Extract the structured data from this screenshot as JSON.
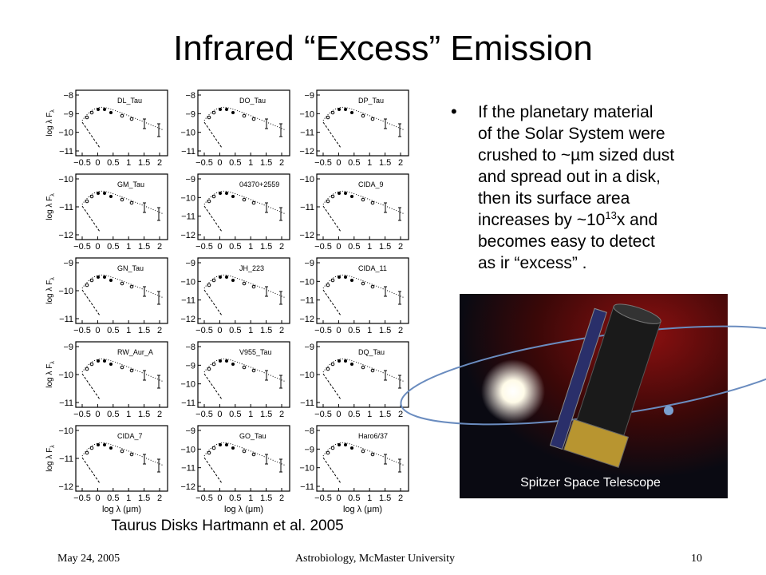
{
  "title": "Infrared “Excess” Emission",
  "figure": {
    "xticks": [
      "−0.5",
      "0",
      "0.5",
      "1",
      "1.5",
      "2"
    ],
    "ylabel": "log λ F",
    "ylabel_sub": "λ",
    "xlabel": "log λ (μm)",
    "panels": [
      {
        "name": "DL_Tau",
        "yticks": [
          "−8",
          "−9",
          "−10",
          "−11"
        ]
      },
      {
        "name": "DO_Tau",
        "yticks": [
          "−8",
          "−9",
          "−10",
          "−11"
        ]
      },
      {
        "name": "DP_Tau",
        "yticks": [
          "−9",
          "−10",
          "−11",
          "−12"
        ]
      },
      {
        "name": "GM_Tau",
        "yticks": [
          "−10",
          "−11",
          "−12"
        ]
      },
      {
        "name": "04370+2559",
        "yticks": [
          "−9",
          "−10",
          "−11",
          "−12"
        ]
      },
      {
        "name": "CIDA_9",
        "yticks": [
          "−10",
          "−11",
          "−12"
        ]
      },
      {
        "name": "GN_Tau",
        "yticks": [
          "−9",
          "−10",
          "−11"
        ]
      },
      {
        "name": "JH_223",
        "yticks": [
          "−9",
          "−10",
          "−11",
          "−12"
        ]
      },
      {
        "name": "CIDA_11",
        "yticks": [
          "−9",
          "−10",
          "−11",
          "−12"
        ]
      },
      {
        "name": "RW_Aur_A",
        "yticks": [
          "−9",
          "−10",
          "−11"
        ]
      },
      {
        "name": "V955_Tau",
        "yticks": [
          "−8",
          "−9",
          "−10",
          "−11"
        ]
      },
      {
        "name": "DQ_Tau",
        "yticks": [
          "−9",
          "−10",
          "−11"
        ]
      },
      {
        "name": "CIDA_7",
        "yticks": [
          "−10",
          "−11",
          "−12"
        ]
      },
      {
        "name": "GO_Tau",
        "yticks": [
          "−9",
          "−10",
          "−11",
          "−12"
        ]
      },
      {
        "name": "Haro6/37",
        "yticks": [
          "−8",
          "−9",
          "−10",
          "−11"
        ]
      }
    ],
    "caption": "Taurus Disks  Hartmann et al. 2005"
  },
  "bullet": {
    "lines": [
      "If the planetary material",
      "of the Solar System were",
      "crushed to ~µm sized dust",
      "and spread out in a disk,",
      "then its surface area"
    ],
    "sup_line": {
      "text": "increases by ~10",
      "sup": "13",
      "tail": "x and"
    },
    "end_lines": [
      "becomes easy to detect",
      "as ir “excess” ."
    ]
  },
  "image_caption": "Spitzer Space Telescope",
  "footer": {
    "date": "May 24, 2005",
    "center": "Astrobiology, McMaster University",
    "page": "10"
  }
}
